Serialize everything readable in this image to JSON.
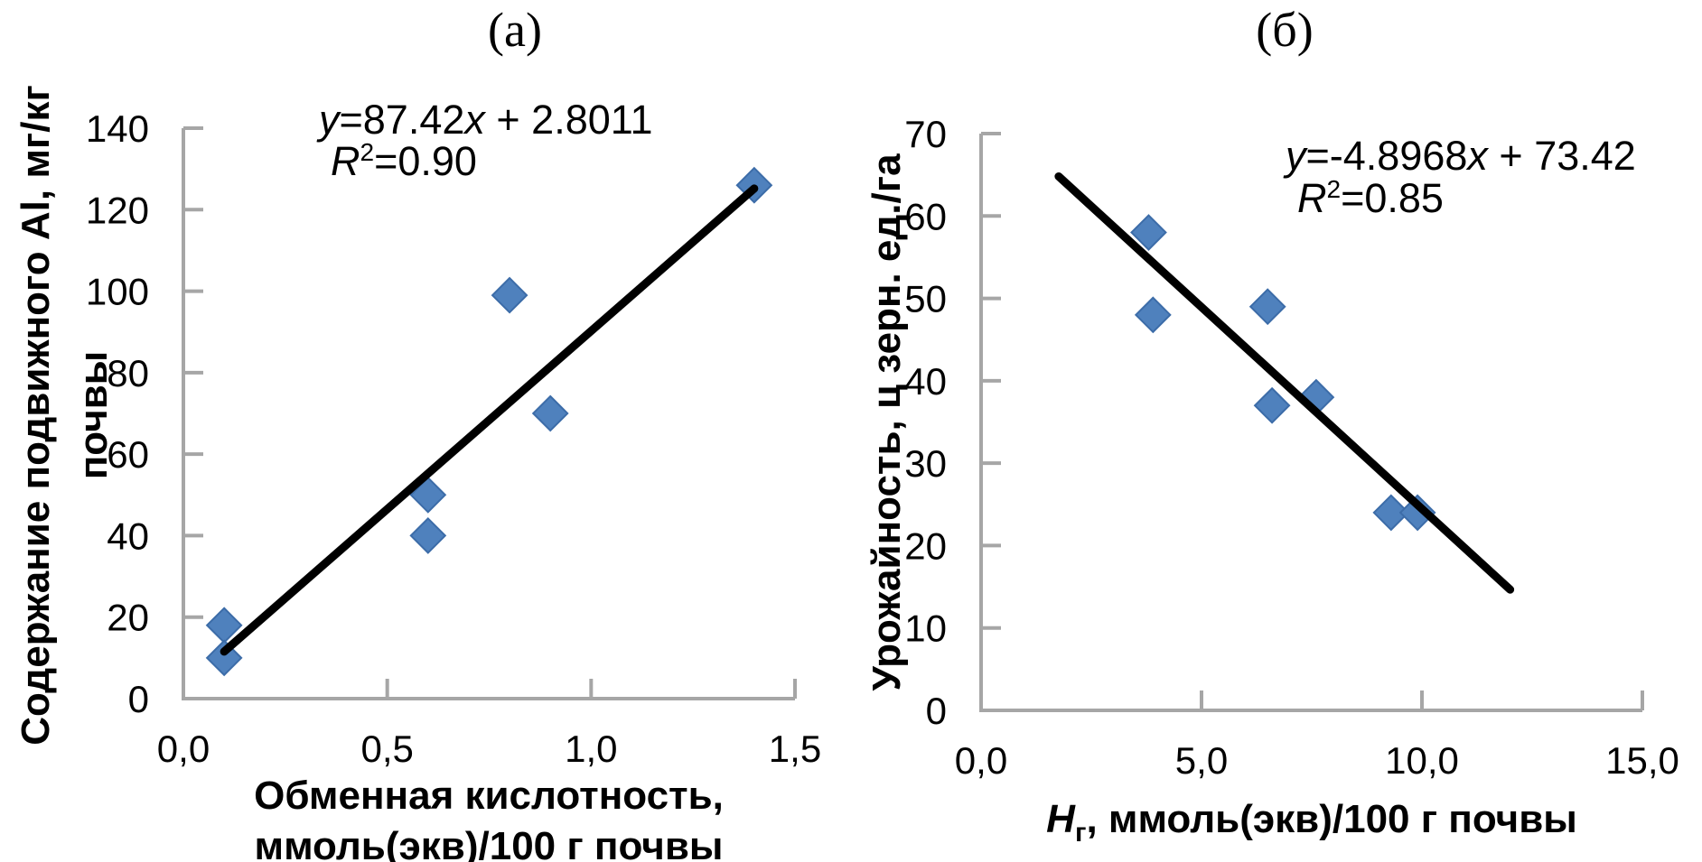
{
  "colors": {
    "marker": "#4f81bd",
    "marker_border": "#3c6ca8",
    "trend": "#000000",
    "axis": "#a6a6a6",
    "text": "#000000",
    "background": "#ffffff"
  },
  "panels": {
    "a": {
      "equation": {
        "y": "y",
        "mid": "=87.42",
        "x": "x",
        "tail": " + 2.8011"
      },
      "r2": {
        "R": "R",
        "exp": "2",
        "rest": "=0.90"
      },
      "y_title_line1": "Содержание подвижного Al, мг/кг",
      "y_title_line2": "почвы",
      "x_title_line1": "Обменная кислотность,",
      "x_title_line2": "ммоль(экв)/100 г почвы"
    },
    "b": {
      "equation": {
        "y": "y",
        "mid": "=-4.8968",
        "x": "x",
        "tail": " + 73.42"
      },
      "r2": {
        "R": "R",
        "exp": "2",
        "rest": "=0.85"
      },
      "y_title": "Урожайность, ц зерн. ед./га",
      "x_title_sym": "H",
      "x_title_sub": "г",
      "x_title_rest": ", ммоль(экв)/100 г почвы"
    }
  },
  "chart_data": [
    {
      "id": "a",
      "type": "scatter",
      "title": "(а)",
      "xlabel": "Обменная кислотность, ммоль(экв)/100 г почвы",
      "ylabel": "Содержание подвижного Al, мг/кг почвы",
      "xlim": [
        0,
        1.5
      ],
      "ylim": [
        0,
        140
      ],
      "grid": false,
      "x_tick_values": [
        0,
        0.5,
        1.0,
        1.5
      ],
      "x_tick_labels": [
        "0,0",
        "0,5",
        "1,0",
        "1,5"
      ],
      "y_tick_values": [
        0,
        20,
        40,
        60,
        80,
        100,
        120,
        140
      ],
      "y_tick_labels": [
        "0",
        "20",
        "40",
        "60",
        "80",
        "100",
        "120",
        "140"
      ],
      "points": [
        [
          0.1,
          18
        ],
        [
          0.1,
          10
        ],
        [
          0.6,
          50
        ],
        [
          0.6,
          40
        ],
        [
          0.8,
          99
        ],
        [
          0.9,
          70
        ],
        [
          1.4,
          126
        ]
      ],
      "trendline": {
        "slope": 87.42,
        "intercept": 2.8011,
        "r_squared": 0.9,
        "x_start": 0.1,
        "x_end": 1.4
      }
    },
    {
      "id": "b",
      "type": "scatter",
      "title": "(б)",
      "xlabel": "Hг, ммоль(экв)/100 г почвы",
      "ylabel": "Урожайность, ц зерн. ед./га",
      "xlim": [
        0,
        15
      ],
      "ylim": [
        0,
        70
      ],
      "grid": false,
      "x_tick_values": [
        0,
        5,
        10,
        15
      ],
      "x_tick_labels": [
        "0,0",
        "5,0",
        "10,0",
        "15,0"
      ],
      "y_tick_values": [
        0,
        10,
        20,
        30,
        40,
        50,
        60,
        70
      ],
      "y_tick_labels": [
        "0",
        "10",
        "20",
        "30",
        "40",
        "50",
        "60",
        "70"
      ],
      "points": [
        [
          3.8,
          58
        ],
        [
          3.9,
          48
        ],
        [
          6.5,
          49
        ],
        [
          6.6,
          37
        ],
        [
          7.6,
          38
        ],
        [
          9.3,
          24
        ],
        [
          9.9,
          24
        ]
      ],
      "trendline": {
        "slope": -4.8968,
        "intercept": 73.42,
        "r_squared": 0.85,
        "x_start": 1.76,
        "x_end": 12.0
      }
    }
  ]
}
